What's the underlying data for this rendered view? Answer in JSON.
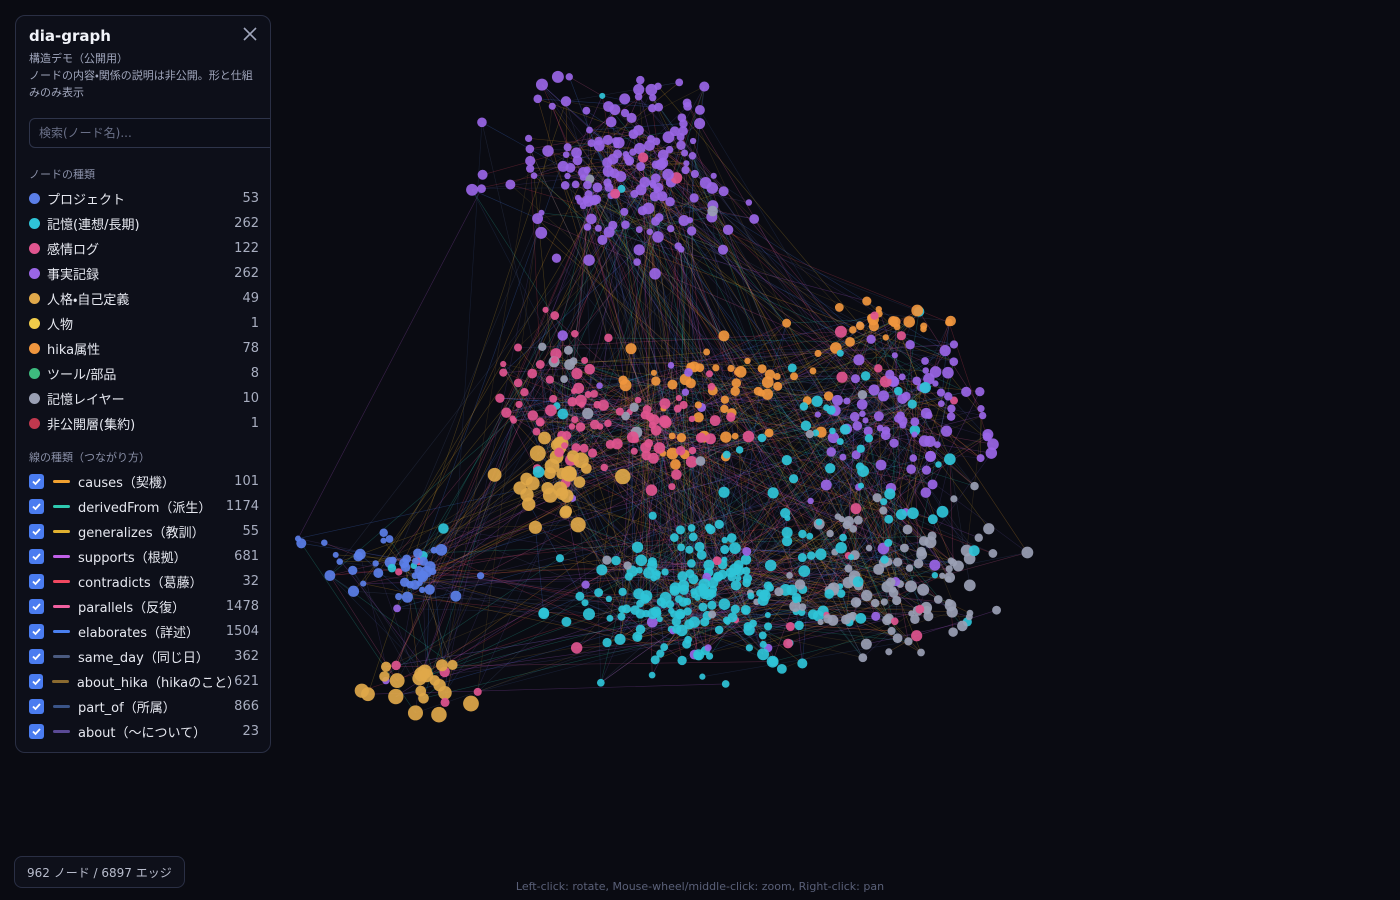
{
  "panel": {
    "title": "dia-graph",
    "subtitle": "構造デモ（公開用）",
    "description": "ノードの内容・関係の説明は非公開。形と仕組みのみ表示",
    "search_placeholder": "検索(ノード名)...",
    "node_types_heading": "ノードの種類",
    "node_types": [
      {
        "name": "プロジェクト",
        "count": 53,
        "color": "#5b7fe8"
      },
      {
        "name": "記憶(連想/長期)",
        "count": 262,
        "color": "#2fc4d8"
      },
      {
        "name": "感情ログ",
        "count": 122,
        "color": "#e0558f"
      },
      {
        "name": "事実記録",
        "count": 262,
        "color": "#9a66e6"
      },
      {
        "name": "人格・自己定義",
        "count": 49,
        "color": "#e0a84a"
      },
      {
        "name": "人物",
        "count": 1,
        "color": "#f0cc4a"
      },
      {
        "name": "hika属性",
        "count": 78,
        "color": "#f0963e"
      },
      {
        "name": "ツール/部品",
        "count": 8,
        "color": "#3dba7e"
      },
      {
        "name": "記憶レイヤー",
        "count": 10,
        "color": "#9aa0b4"
      },
      {
        "name": "非公開層(集約)",
        "count": 1,
        "color": "#c0384e"
      }
    ],
    "edge_types_heading": "線の種類（つながり方）",
    "edge_types": [
      {
        "name": "causes（契機）",
        "count": 101,
        "color": "#f0a030"
      },
      {
        "name": "derivedFrom（派生）",
        "count": 1174,
        "color": "#2ec9b0"
      },
      {
        "name": "generalizes（教訓）",
        "count": 55,
        "color": "#e0b030"
      },
      {
        "name": "supports（根拠）",
        "count": 681,
        "color": "#c060e8"
      },
      {
        "name": "contradicts（葛藤）",
        "count": 32,
        "color": "#f04860"
      },
      {
        "name": "parallels（反復）",
        "count": 1478,
        "color": "#f060a0"
      },
      {
        "name": "elaborates（詳述）",
        "count": 1504,
        "color": "#4a80f0"
      },
      {
        "name": "same_day（同じ日）",
        "count": 362,
        "color": "#4a5a80"
      },
      {
        "name": "about_hika（hikaのこと）",
        "count": 621,
        "color": "#8a6a30"
      },
      {
        "name": "part_of（所属）",
        "count": 866,
        "color": "#3a5488"
      },
      {
        "name": "about（〜について）",
        "count": 23,
        "color": "#5a4a96"
      }
    ]
  },
  "status": "962 ノード / 6897 エッジ",
  "hint": "Left-click: rotate, Mouse-wheel/middle-click: zoom, Right-click: pan"
}
